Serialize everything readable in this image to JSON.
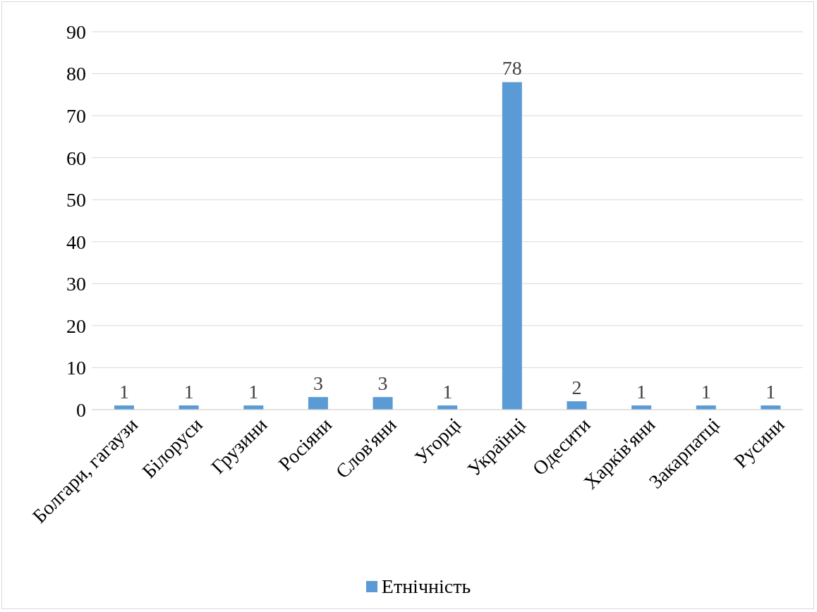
{
  "chart_data": {
    "type": "bar",
    "categories": [
      "Болгари, гагаузи",
      "Білоруси",
      "Грузини",
      "Росіяни",
      "Слов'яни",
      "Угорці",
      "Українці",
      "Одесити",
      "Харків'яни",
      "Закарпатці",
      "Русини"
    ],
    "series": [
      {
        "name": "Етнічність",
        "color": "#5b9bd5",
        "values": [
          1,
          1,
          1,
          3,
          3,
          1,
          78,
          2,
          1,
          1,
          1
        ]
      }
    ],
    "ylim": [
      0,
      90
    ],
    "yticks": [
      0,
      10,
      20,
      30,
      40,
      50,
      60,
      70,
      80,
      90
    ],
    "grid": "y",
    "legend": "bottom",
    "data_labels": true
  }
}
